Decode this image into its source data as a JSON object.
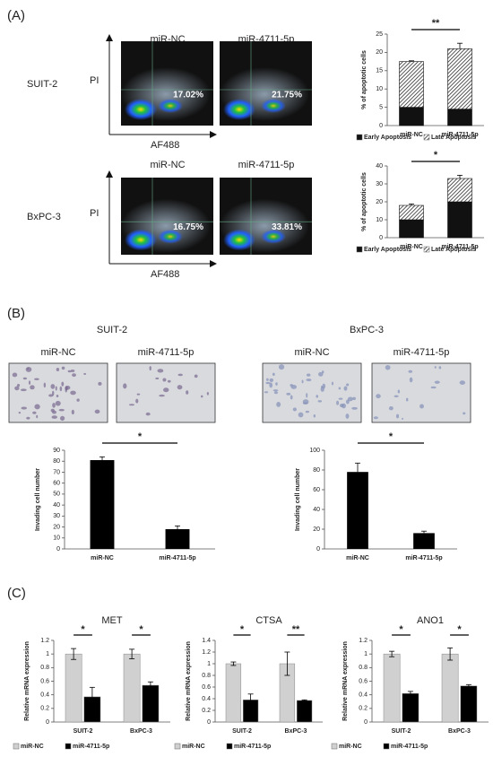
{
  "figure": {
    "panel_labels": [
      "(A)",
      "(B)",
      "(C)"
    ],
    "flow": {
      "columns": [
        "miR-NC",
        "miR-4711-5p"
      ],
      "y_axis": "PI",
      "x_axis": "AF488",
      "rows": [
        {
          "name": "SUIT-2",
          "percents": [
            "17.02%",
            "21.75%"
          ]
        },
        {
          "name": "BxPC-3",
          "percents": [
            "16.75%",
            "33.81%"
          ]
        }
      ]
    },
    "invasion": [
      {
        "name": "SUIT-2",
        "columns": [
          "miR-NC",
          "miR-4711-5p"
        ]
      },
      {
        "name": "BxPC-3",
        "columns": [
          "miR-NC",
          "miR-4711-5p"
        ]
      }
    ]
  },
  "chart_data": [
    {
      "type": "stacked_bar",
      "y_label": "% of apoptotic cells",
      "categories": [
        "miR-NC",
        "miR-4711-5p"
      ],
      "series": [
        {
          "name": "Early Apoptosis",
          "color": "#111111",
          "values": [
            5,
            4.5
          ]
        },
        {
          "name": "Late Apoptosis",
          "color": "#111111",
          "hatch": true,
          "values": [
            12.5,
            16.5
          ],
          "errors": [
            0.2,
            1.5
          ]
        }
      ],
      "ylim": [
        0,
        25
      ],
      "yticks": [
        0,
        5,
        10,
        15,
        20,
        25
      ],
      "annotations": [
        "**"
      ]
    },
    {
      "type": "stacked_bar",
      "y_label": "% of apoptotic cells",
      "categories": [
        "miR-NC",
        "miR-4711-5p"
      ],
      "series": [
        {
          "name": "Early Apoptosis",
          "color": "#111111",
          "values": [
            10,
            20
          ]
        },
        {
          "name": "Late Apoptosis",
          "color": "#111111",
          "hatch": true,
          "values": [
            8,
            13
          ],
          "errors": [
            0.8,
            1.8
          ]
        }
      ],
      "ylim": [
        0,
        40
      ],
      "yticks": [
        0,
        10,
        20,
        30,
        40
      ],
      "annotations": [
        "*"
      ]
    },
    {
      "type": "bar",
      "y_label": "Invading cell number",
      "categories": [
        "miR-NC",
        "miR-4711-5p"
      ],
      "values": [
        81,
        18
      ],
      "errors": [
        3,
        3
      ],
      "color": "#000000",
      "ylim": [
        0,
        90
      ],
      "yticks": [
        0,
        10,
        20,
        30,
        40,
        50,
        60,
        70,
        80,
        90
      ],
      "annotations": [
        "*"
      ]
    },
    {
      "type": "bar",
      "y_label": "Invading cell number",
      "categories": [
        "miR-NC",
        "miR-4711-5p"
      ],
      "values": [
        78,
        16
      ],
      "errors": [
        9,
        2
      ],
      "color": "#000000",
      "ylim": [
        0,
        100
      ],
      "yticks": [
        0,
        20,
        40,
        60,
        80,
        100
      ],
      "annotations": [
        "*"
      ]
    },
    {
      "type": "grouped_bar",
      "title": "MET",
      "y_label": "Relative mRNA expression",
      "categories": [
        "SUIT-2",
        "BxPC-3"
      ],
      "series": [
        {
          "name": "miR-NC",
          "color": "#d0d0d0",
          "values": [
            1,
            1
          ],
          "errors": [
            0.08,
            0.07
          ]
        },
        {
          "name": "miR-4711-5p",
          "color": "#000000",
          "values": [
            0.37,
            0.54
          ],
          "errors": [
            0.14,
            0.05
          ]
        }
      ],
      "ylim": [
        0,
        1.2
      ],
      "yticks": [
        0,
        0.2,
        0.4,
        0.6,
        0.8,
        1,
        1.2
      ],
      "annotations": [
        "*",
        "*"
      ]
    },
    {
      "type": "grouped_bar",
      "title": "CTSA",
      "y_label": "Relative mRNA expression",
      "categories": [
        "SUIT-2",
        "BxPC-3"
      ],
      "series": [
        {
          "name": "miR-NC",
          "color": "#d0d0d0",
          "values": [
            1,
            1
          ],
          "errors": [
            0.03,
            0.2
          ]
        },
        {
          "name": "miR-4711-5p",
          "color": "#000000",
          "values": [
            0.38,
            0.37
          ],
          "errors": [
            0.1,
            0.01
          ]
        }
      ],
      "ylim": [
        0,
        1.4
      ],
      "yticks": [
        0,
        0.2,
        0.4,
        0.6,
        0.8,
        1,
        1.2,
        1.4
      ],
      "annotations": [
        "*",
        "**"
      ]
    },
    {
      "type": "grouped_bar",
      "title": "ANO1",
      "y_label": "Relative mRNA expression",
      "categories": [
        "SUIT-2",
        "BxPC-3"
      ],
      "series": [
        {
          "name": "miR-NC",
          "color": "#d0d0d0",
          "values": [
            1,
            1
          ],
          "errors": [
            0.04,
            0.09
          ]
        },
        {
          "name": "miR-4711-5p",
          "color": "#000000",
          "values": [
            0.42,
            0.53
          ],
          "errors": [
            0.03,
            0.02
          ]
        }
      ],
      "ylim": [
        0,
        1.2
      ],
      "yticks": [
        0,
        0.2,
        0.4,
        0.6,
        0.8,
        1,
        1.2
      ],
      "annotations": [
        "*",
        "*"
      ]
    }
  ]
}
